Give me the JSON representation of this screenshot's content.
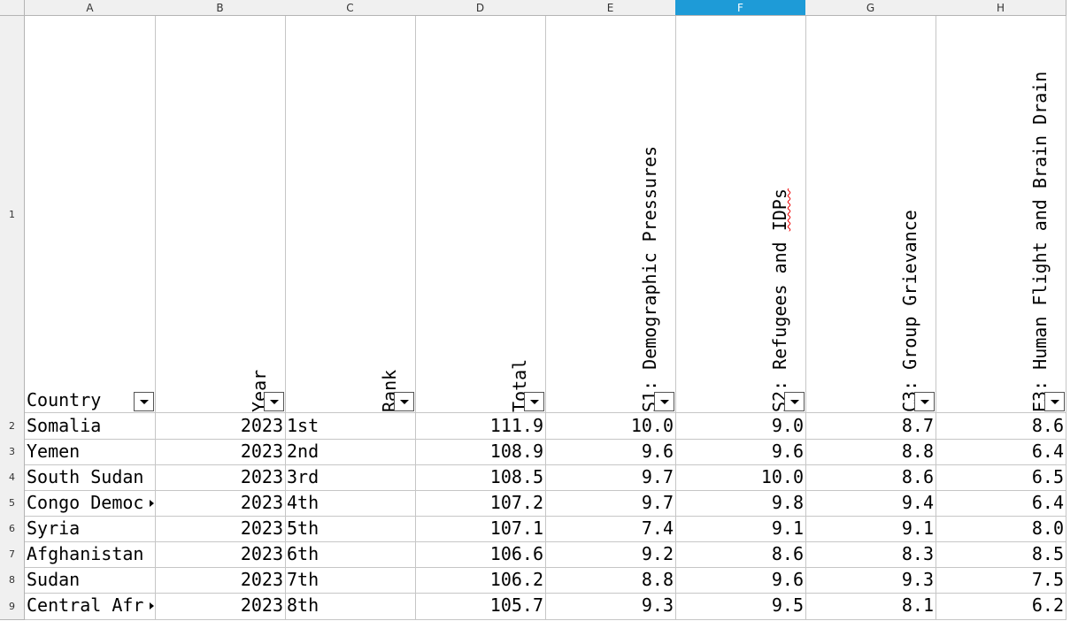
{
  "columns": [
    "A",
    "B",
    "C",
    "D",
    "E",
    "F",
    "G",
    "H"
  ],
  "selected_column": "F",
  "row_numbers": [
    "1",
    "2",
    "3",
    "4",
    "5",
    "6",
    "7",
    "8",
    "9"
  ],
  "headers": {
    "country": "Country",
    "year": "Year",
    "rank": "Rank",
    "total": "Total",
    "s1": "S1: Demographic Pressures",
    "s2_prefix": "S2: Refugees and ",
    "s2_flagged": "IDPs",
    "c3": "C3: Group Grievance",
    "e3": "E3: Human Flight and Brain Drain"
  },
  "rows": [
    {
      "country": "Somalia",
      "year": "2023",
      "rank": "1st",
      "total": "111.9",
      "s1": "10.0",
      "s2": "9.0",
      "c3": "8.7",
      "e3": "8.6"
    },
    {
      "country": "Yemen",
      "year": "2023",
      "rank": "2nd",
      "total": "108.9",
      "s1": "9.6",
      "s2": "9.6",
      "c3": "8.8",
      "e3": "6.4"
    },
    {
      "country": "South Sudan",
      "year": "2023",
      "rank": "3rd",
      "total": "108.5",
      "s1": "9.7",
      "s2": "10.0",
      "c3": "8.6",
      "e3": "6.5"
    },
    {
      "country": "Congo Democ",
      "year": "2023",
      "rank": "4th",
      "total": "107.2",
      "s1": "9.7",
      "s2": "9.8",
      "c3": "9.4",
      "e3": "6.4"
    },
    {
      "country": "Syria",
      "year": "2023",
      "rank": "5th",
      "total": "107.1",
      "s1": "7.4",
      "s2": "9.1",
      "c3": "9.1",
      "e3": "8.0"
    },
    {
      "country": "Afghanistan",
      "year": "2023",
      "rank": "6th",
      "total": "106.6",
      "s1": "9.2",
      "s2": "8.6",
      "c3": "8.3",
      "e3": "8.5"
    },
    {
      "country": "Sudan",
      "year": "2023",
      "rank": "7th",
      "total": "106.2",
      "s1": "8.8",
      "s2": "9.6",
      "c3": "9.3",
      "e3": "7.5"
    },
    {
      "country": "Central Afr",
      "year": "2023",
      "rank": "8th",
      "total": "105.7",
      "s1": "9.3",
      "s2": "9.5",
      "c3": "8.1",
      "e3": "6.2"
    }
  ],
  "overflow_rows": [
    3,
    7
  ],
  "colors": {
    "selected_header": "#1e9bd7",
    "header_bg": "#f0f0f0",
    "grid": "#c6c6c6",
    "spellcheck": "#e00000"
  }
}
